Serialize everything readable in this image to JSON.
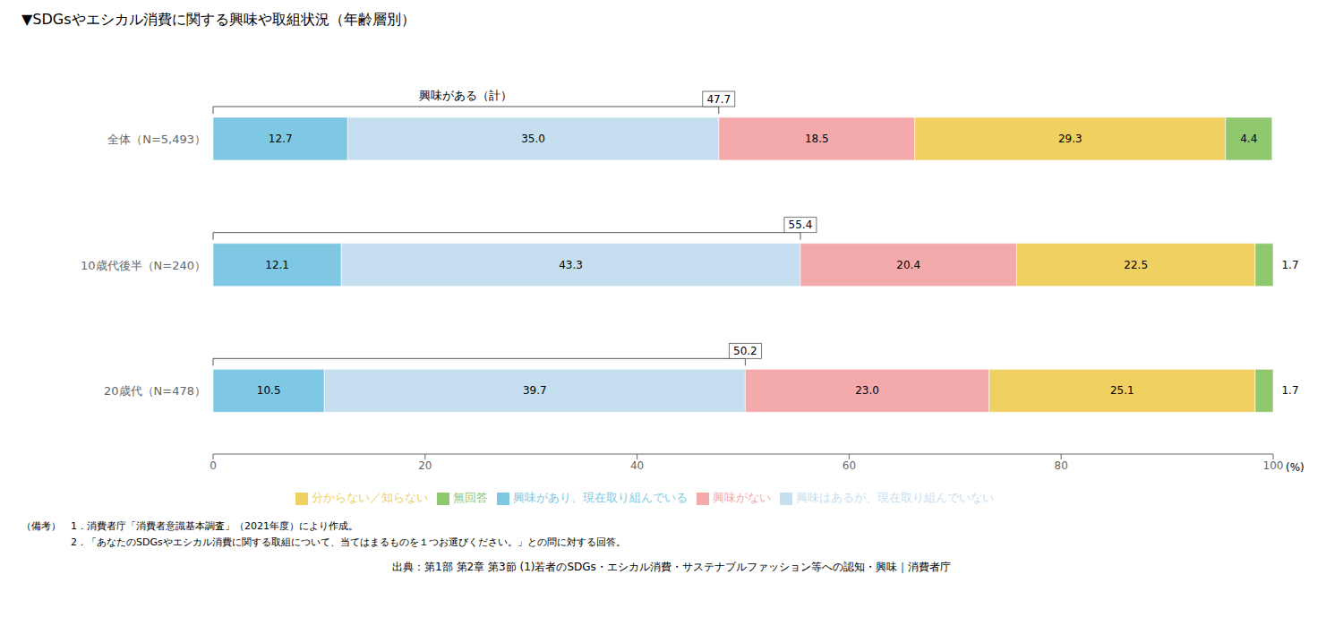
{
  "chart_data": {
    "type": "bar",
    "orientation": "horizontal",
    "stacked": true,
    "data_labels": true,
    "grid": false,
    "legend": "bottom",
    "title": "▼SDGsやエシカル消費に関する興味や取組状況（年齢層別）",
    "x_label": "(%)",
    "categories": [
      "全体（N=5,493）",
      "10歳代後半（N=240）",
      "20歳代（N=478）"
    ],
    "series": [
      {
        "name": "興味があり、現在取り組んでいる",
        "color": "#7EC8E3",
        "values": [
          12.7,
          12.1,
          10.5
        ]
      },
      {
        "name": "興味はあるが、現在取り組んでいない",
        "color": "#C5DEF0",
        "values": [
          35.0,
          43.3,
          39.7
        ],
        "value_labels": [
          "35.0",
          "43.3",
          "39.7"
        ]
      },
      {
        "name": "興味がない",
        "color": "#F4AAAA",
        "values": [
          18.5,
          20.4,
          23.0
        ],
        "value_labels": [
          "18.5",
          "20.4",
          "23.0"
        ]
      },
      {
        "name": "分からない／知らない",
        "color": "#F0D060",
        "values": [
          29.3,
          22.5,
          25.1
        ]
      },
      {
        "name": "無回答",
        "color": "#90C870",
        "values": [
          4.4,
          1.7,
          1.7
        ]
      }
    ],
    "xlim": [
      0,
      100
    ],
    "xticks": [
      0,
      20,
      40,
      60,
      80,
      100
    ],
    "subtotal_label": "興味がある（計）",
    "subtotals": [
      47.7,
      55.4,
      50.2
    ],
    "notes": [
      "（備考）　1．消費者庁「消費者意識基本調査」（2021年度）により作成。",
      "　　　　　2．「あなたのSDGsやエシカル消費に関する取組について、当てはまるものを１つお選びください。」との問に対する回答。"
    ],
    "source": "出典：第1部 第2章 第3節 (1)若者のSDGs・エシカル消費・サステナブルファッション等への認知・興味｜消費者庁"
  }
}
